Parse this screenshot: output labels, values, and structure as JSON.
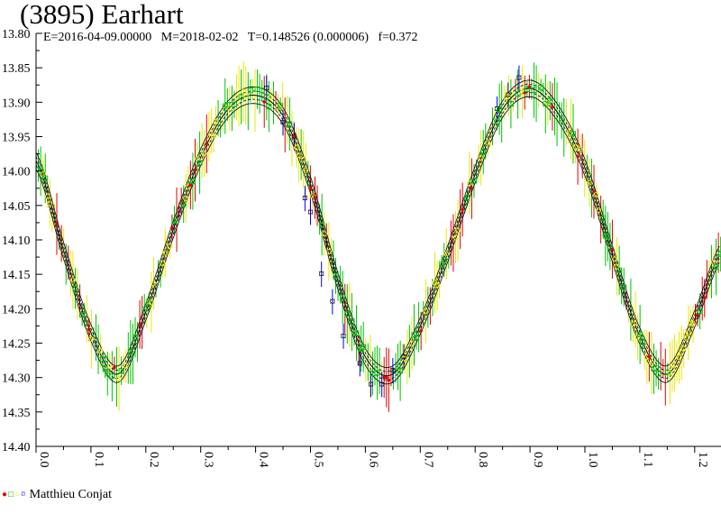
{
  "title": "(3895) Earhart",
  "subtitle": {
    "epoch": "E=2016-04-09.00000",
    "modified": "M=2018-02-02",
    "period": "T=0.148526 (0.000006)",
    "fraction": "f=0.372"
  },
  "legend": {
    "observer": "Matthieu Conjat",
    "markers": [
      {
        "glyph": "●",
        "color": "#e00000"
      },
      {
        "glyph": "□",
        "color": "#00c000"
      },
      {
        "glyph": "○",
        "color": "#e8e800"
      },
      {
        "glyph": "¤",
        "color": "#0000ff"
      }
    ]
  },
  "chart_data": {
    "type": "scatter",
    "title": "(3895) Earhart",
    "xlabel": "",
    "ylabel": "",
    "xlim": [
      0.0,
      1.25
    ],
    "ylim": [
      13.8,
      14.4
    ],
    "y_inverted": true,
    "grid": false,
    "x_ticks": [
      "0.0",
      "0.1",
      "0.2",
      "0.3",
      "0.4",
      "0.5",
      "0.6",
      "0.7",
      "0.8",
      "0.9",
      "1.0",
      "1.1",
      "1.2"
    ],
    "y_ticks": [
      "13.80",
      "13.85",
      "13.90",
      "13.95",
      "14.00",
      "14.05",
      "14.10",
      "14.15",
      "14.20",
      "14.25",
      "14.30",
      "14.35",
      "14.40"
    ],
    "fit_curve": {
      "description": "two-harmonic lightcurve fit with confidence envelope",
      "points": [
        [
          0.0,
          13.985
        ],
        [
          0.05,
          14.115
        ],
        [
          0.1,
          14.235
        ],
        [
          0.15,
          14.295
        ],
        [
          0.2,
          14.205
        ],
        [
          0.25,
          14.085
        ],
        [
          0.3,
          13.98
        ],
        [
          0.35,
          13.91
        ],
        [
          0.4,
          13.89
        ],
        [
          0.45,
          13.92
        ],
        [
          0.5,
          14.02
        ],
        [
          0.55,
          14.16
        ],
        [
          0.6,
          14.27
        ],
        [
          0.65,
          14.295
        ],
        [
          0.7,
          14.225
        ],
        [
          0.75,
          14.12
        ],
        [
          0.8,
          14.005
        ],
        [
          0.85,
          13.91
        ],
        [
          0.9,
          13.88
        ],
        [
          0.95,
          13.915
        ],
        [
          1.0,
          13.995
        ],
        [
          1.05,
          14.12
        ],
        [
          1.1,
          14.24
        ],
        [
          1.15,
          14.295
        ],
        [
          1.2,
          14.215
        ],
        [
          1.25,
          14.115
        ]
      ],
      "envelope_offsets": [
        -0.012,
        -0.006,
        0.006,
        0.012
      ]
    },
    "series": [
      {
        "name": "Matthieu Conjat",
        "marker": "¤",
        "color": "#0000ff",
        "points": [
          [
            0.42,
            13.88
          ],
          [
            0.45,
            13.93
          ],
          [
            0.47,
            13.95
          ],
          [
            0.49,
            14.04
          ],
          [
            0.5,
            14.06
          ],
          [
            0.52,
            14.15
          ],
          [
            0.54,
            14.19
          ],
          [
            0.56,
            14.24
          ],
          [
            0.59,
            14.28
          ],
          [
            0.61,
            14.31
          ],
          [
            0.63,
            14.31
          ],
          [
            0.65,
            14.29
          ],
          [
            0.67,
            14.27
          ],
          [
            0.84,
            13.91
          ],
          [
            0.86,
            13.89
          ],
          [
            0.88,
            13.865
          ]
        ]
      },
      {
        "name": "",
        "marker": "□",
        "color": "#00c000",
        "points": []
      },
      {
        "name": "",
        "marker": "○",
        "color": "#e8e800",
        "points": []
      },
      {
        "name": "",
        "marker": "●",
        "color": "#e00000",
        "points": []
      }
    ],
    "colors": [
      "#e00000",
      "#00c000",
      "#e8e800",
      "#0000ff"
    ]
  }
}
